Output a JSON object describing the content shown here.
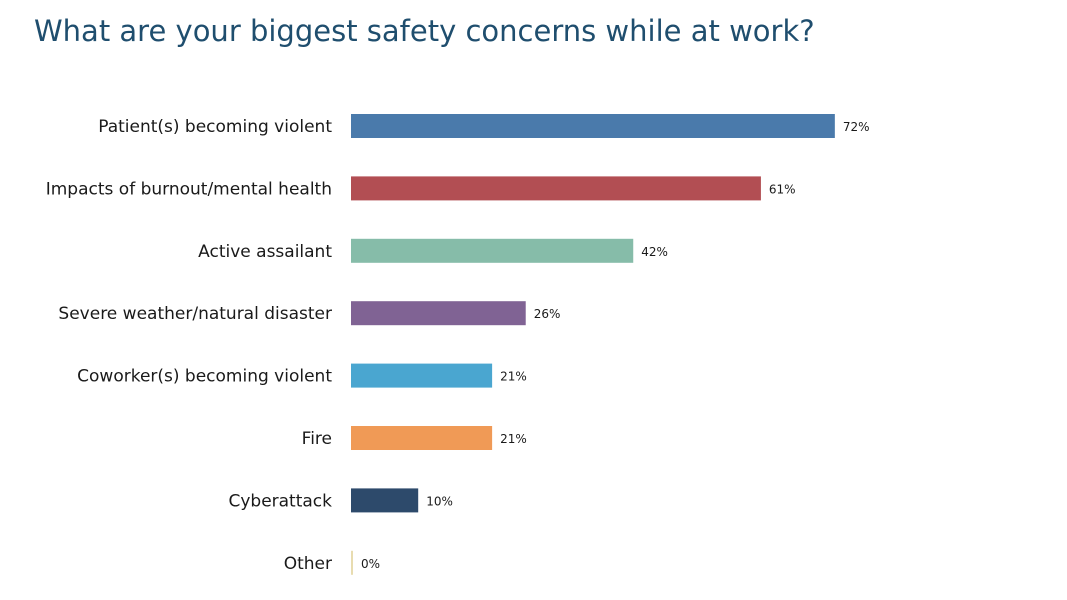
{
  "chart_data": {
    "type": "bar",
    "orientation": "horizontal",
    "title": "What are your biggest safety concerns while at work?",
    "categories": [
      "Patient(s) becoming violent",
      "Impacts of burnout/mental health",
      "Active assailant",
      "Severe weather/natural disaster",
      "Coworker(s) becoming violent",
      "Fire",
      "Cyberattack",
      "Other"
    ],
    "values": [
      72,
      61,
      42,
      26,
      21,
      21,
      10,
      0
    ],
    "value_labels": [
      "72%",
      "61%",
      "42%",
      "26%",
      "21%",
      "21%",
      "10%",
      "0%"
    ],
    "colors": [
      "#4a7aab",
      "#b24e53",
      "#86bca9",
      "#806394",
      "#4aa6d0",
      "#f09a56",
      "#2d4a6b",
      "#e8dcb0"
    ],
    "xlim": [
      0,
      100
    ],
    "grid": false,
    "legend": "none"
  }
}
